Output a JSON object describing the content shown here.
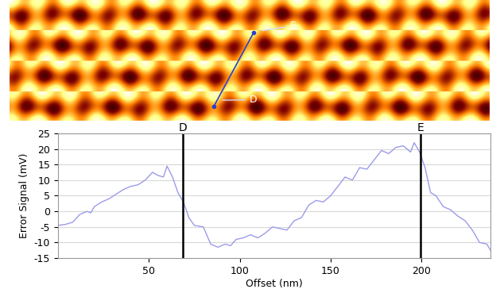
{
  "chart_data": {
    "type": "line",
    "x_label": "Offset (nm)",
    "y_label": "Error Signal (mV)",
    "x": [
      0,
      4,
      8,
      12,
      16,
      18,
      20,
      24,
      28,
      32,
      36,
      40,
      44,
      48,
      52,
      55,
      58,
      60,
      63,
      66,
      69,
      72,
      75,
      80,
      84,
      88,
      92,
      95,
      98,
      102,
      106,
      110,
      114,
      118,
      122,
      126,
      130,
      134,
      138,
      142,
      146,
      150,
      154,
      158,
      162,
      166,
      170,
      174,
      178,
      182,
      186,
      190,
      194,
      196,
      199,
      202,
      205,
      208,
      212,
      216,
      220,
      224,
      228,
      232,
      236,
      238
    ],
    "values": [
      -4.5,
      -4.2,
      -3.5,
      -1,
      0,
      -0.5,
      1.5,
      3,
      4,
      5.5,
      7,
      8,
      8.5,
      10,
      12.5,
      11.5,
      11,
      14.5,
      11,
      6,
      3,
      -2,
      -4.5,
      -5,
      -10.5,
      -11.5,
      -10.5,
      -11,
      -9,
      -8.5,
      -7.5,
      -8.5,
      -7,
      -5,
      -5.5,
      -6,
      -3,
      -2,
      2,
      3.5,
      3,
      5,
      8,
      11,
      10,
      14,
      13.5,
      16.5,
      19.5,
      18.5,
      20.5,
      21,
      19,
      22,
      19,
      14,
      6,
      5,
      1.5,
      0.5,
      -1.5,
      -3,
      -6,
      -10,
      -10.5,
      -12.5
    ],
    "color": "#9b9bea",
    "xlim": [
      0,
      238
    ],
    "xticks": [
      50,
      100,
      150,
      200
    ],
    "ylim": [
      -15,
      25
    ],
    "yticks": [
      -15,
      -10,
      -5,
      0,
      5,
      10,
      15,
      20,
      25
    ],
    "grid": "y",
    "markers": [
      {
        "label": "D",
        "x": 68.8
      },
      {
        "label": "E",
        "x": 199.5
      }
    ]
  }
}
